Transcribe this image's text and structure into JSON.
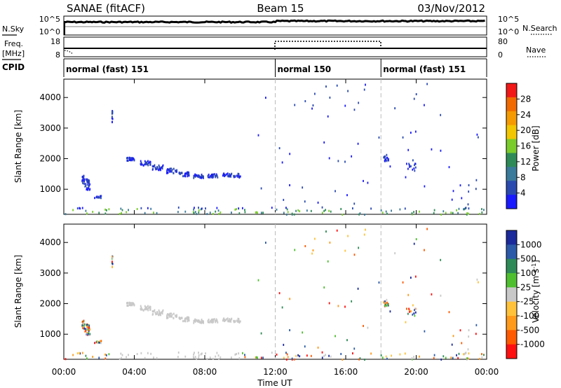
{
  "header": {
    "station": "SANAE (fitACF)",
    "beam": "Beam 15",
    "date": "03/Nov/2012"
  },
  "side_labels": {
    "nsky": "N.Sky",
    "freq_line1": "Freq.",
    "freq_line2": "[MHz]",
    "cpid": "CPID",
    "nsearch": "N.Search",
    "nave": "Nave"
  },
  "nsky_panel": {
    "left_ticks": [
      "10^5",
      "10^0"
    ],
    "right_ticks": [
      "10^5",
      "10^0"
    ]
  },
  "freq_panel": {
    "left_ticks": [
      "18",
      "8"
    ],
    "right_ticks": [
      "80",
      "0"
    ]
  },
  "cpid_segments": [
    {
      "label": "normal (fast) 151",
      "start_h": 0,
      "end_h": 12
    },
    {
      "label": "normal 150",
      "start_h": 12,
      "end_h": 18
    },
    {
      "label": "normal (fast) 151",
      "start_h": 18,
      "end_h": 24
    }
  ],
  "colors": {
    "power_scale": [
      "#1a1aff",
      "#2a4ab0",
      "#3a7a9a",
      "#2e8b57",
      "#7acc2a",
      "#f2c600",
      "#f59a00",
      "#f06a00",
      "#f21818"
    ],
    "velocity_scale": [
      "#ff1010",
      "#ff5a00",
      "#ff9a1a",
      "#ffc23a",
      "#c8c8c8",
      "#4fbf2f",
      "#2e8b57",
      "#2a5aa8",
      "#1a2a9a"
    ],
    "dashed_line": "#bbbbbb"
  },
  "chart_data": [
    {
      "type": "scatter",
      "title": "Power",
      "xlabel": "Time UT",
      "ylabel": "Slant Range [km]",
      "xlim": [
        0,
        24
      ],
      "ylim": [
        180,
        4600
      ],
      "x_ticks": [
        0,
        4,
        8,
        12,
        16,
        20,
        24
      ],
      "x_tick_labels": [
        "00:00",
        "04:00",
        "08:00",
        "12:00",
        "16:00",
        "20:00",
        "00:00"
      ],
      "y_ticks": [
        1000,
        2000,
        3000,
        4000
      ],
      "y_tick_labels": [
        "1000",
        "2000",
        "3000",
        "4000"
      ],
      "colorbar": {
        "label": "Power [dB]",
        "ticks": [
          "4",
          "8",
          "12",
          "16",
          "20",
          "24",
          "28"
        ],
        "range": [
          0,
          30
        ]
      },
      "markers_h": [
        12,
        18
      ],
      "grid": false
    },
    {
      "type": "scatter",
      "title": "Velocity",
      "xlabel": "Time UT",
      "ylabel": "Slant Range [km]",
      "xlim": [
        0,
        24
      ],
      "ylim": [
        180,
        4600
      ],
      "x_ticks": [
        0,
        4,
        8,
        12,
        16,
        20,
        24
      ],
      "x_tick_labels": [
        "00:00",
        "04:00",
        "08:00",
        "12:00",
        "16:00",
        "20:00",
        "00:00"
      ],
      "y_ticks": [
        1000,
        2000,
        3000,
        4000
      ],
      "y_tick_labels": [
        "1000",
        "2000",
        "3000",
        "4000"
      ],
      "colorbar": {
        "label": "Velocity [m s-1]",
        "ticks": [
          "1000",
          "500",
          "100",
          "25",
          "-25",
          "-100",
          "-500",
          "-1000"
        ]
      },
      "markers_h": [
        12,
        18
      ],
      "grid": false
    }
  ]
}
